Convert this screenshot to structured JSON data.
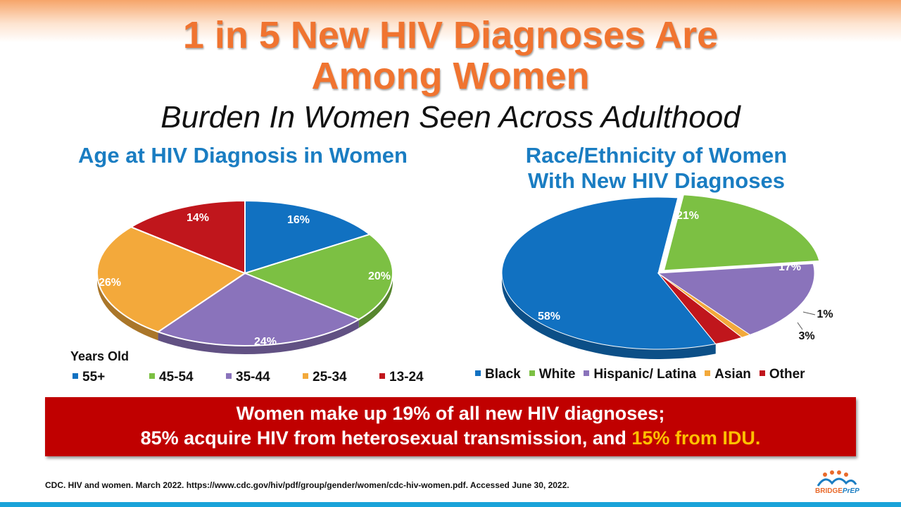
{
  "title_line1": "1 in 5 New HIV Diagnoses Are",
  "title_line2": "Among Women",
  "subtitle": "Burden In Women Seen Across Adulthood",
  "chart_data": [
    {
      "type": "pie",
      "title": "Age at HIV Diagnosis in Women",
      "legend_title": "Years Old",
      "legend_placement": "bottom",
      "categories": [
        "55+",
        "45-54",
        "35-44",
        "25-34",
        "13-24"
      ],
      "values": [
        16,
        20,
        24,
        26,
        14
      ],
      "labels": [
        "16%",
        "20%",
        "24%",
        "26%",
        "14%"
      ],
      "colors": [
        "#1171c1",
        "#7cc043",
        "#8a73bb",
        "#f3a93b",
        "#c0161c"
      ]
    },
    {
      "type": "pie",
      "title_line1": "Race/Ethnicity of Women",
      "title_line2": "With New HIV Diagnoses",
      "legend_placement": "bottom",
      "categories": [
        "Black",
        "White",
        "Hispanic/ Latina",
        "Asian",
        "Other"
      ],
      "values": [
        58,
        21,
        17,
        1,
        3
      ],
      "labels": [
        "58%",
        "21%",
        "17%",
        "1%",
        "3%"
      ],
      "colors": [
        "#1171c1",
        "#7cc043",
        "#8a73bb",
        "#f3a93b",
        "#c0161c"
      ]
    }
  ],
  "banner": {
    "line1": "Women make up 19% of all new HIV diagnoses;",
    "line2_main": "85% acquire HIV from heterosexual transmission, and ",
    "line2_highlight": "15% from IDU."
  },
  "source": "CDC. HIV and women. March 2022. https://www.cdc.gov/hiv/pdf/group/gender/women/cdc-hiv-women.pdf.  Accessed June 30, 2022.",
  "logo_text": "BRIDGEPrEP",
  "colors": {
    "title": "#f07430",
    "chart_title": "#1a7dc2",
    "banner": "#c00000",
    "highlight": "#ffc000"
  }
}
